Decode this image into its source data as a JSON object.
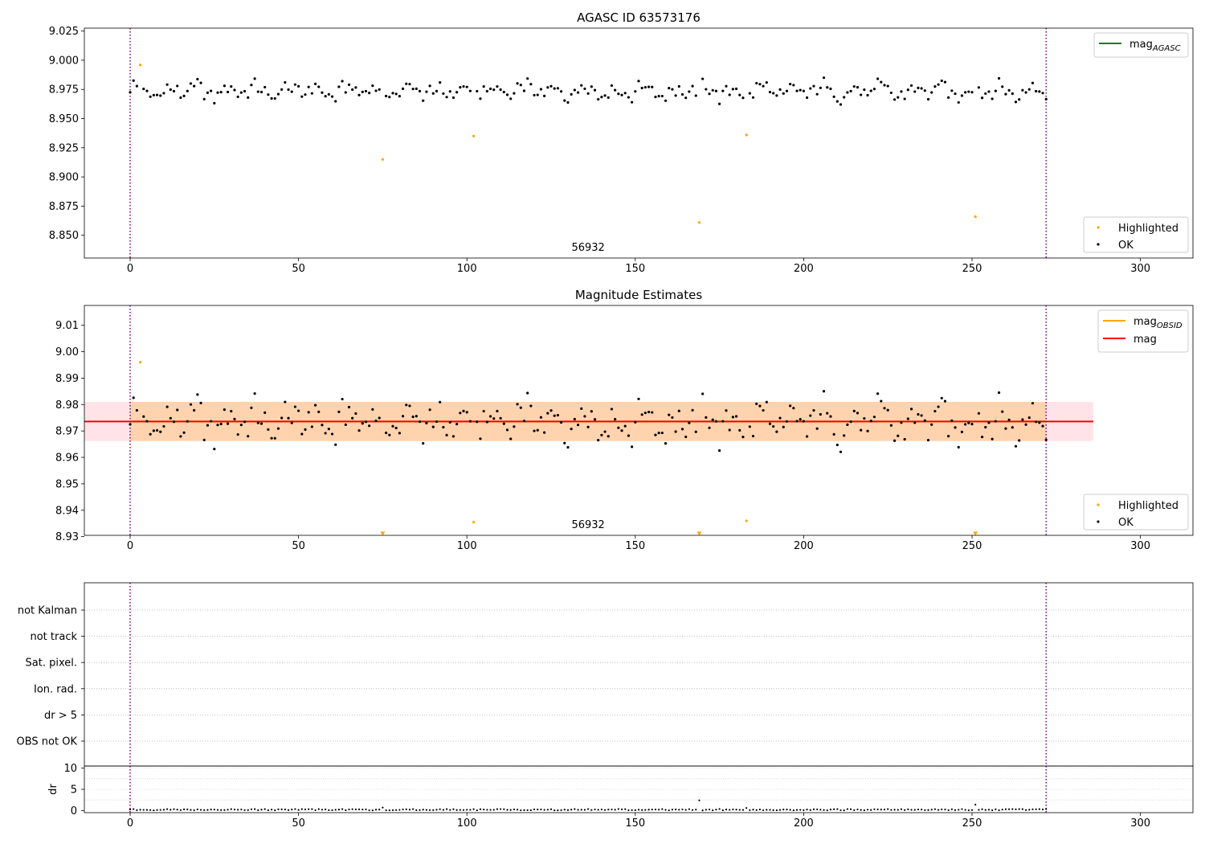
{
  "chart_data": [
    {
      "type": "scatter",
      "title": "AGASC ID 63573176",
      "xlim": [
        -13.6,
        315.6
      ],
      "ylim": [
        8.8305,
        9.0275
      ],
      "xticks": [
        0,
        50,
        100,
        150,
        200,
        250,
        300
      ],
      "yticks": [
        8.85,
        8.875,
        8.9,
        8.925,
        8.95,
        8.975,
        9.0,
        9.025
      ],
      "yticklabels": [
        "8.850",
        "8.875",
        "8.900",
        "8.925",
        "8.950",
        "8.975",
        "9.000",
        "9.025"
      ],
      "vlines": [
        0,
        272
      ],
      "obsid_label": {
        "text": "56932",
        "x": 136
      },
      "legend_upper": [
        {
          "name": "mag",
          "sub": "AGASC",
          "color": "#008000"
        }
      ],
      "legend_lower": [
        {
          "name": "Highlighted",
          "color": "#ffa500"
        },
        {
          "name": "OK",
          "color": "#000000"
        }
      ],
      "series": [
        {
          "name": "Highlighted",
          "color": "#ffa500",
          "points": [
            [
              3,
              8.996
            ],
            [
              75,
              8.915
            ],
            [
              102,
              8.935
            ],
            [
              169,
              8.861
            ],
            [
              183,
              8.936
            ],
            [
              251,
              8.866
            ]
          ]
        },
        {
          "name": "OK",
          "color": "#000000",
          "x_start": 0,
          "x_step": 1,
          "skip": [
            3,
            75,
            102,
            169,
            183,
            251
          ],
          "wave": {
            "base": 8.9735,
            "amp": 0.0075,
            "freqs": [
              0.71,
              1.93,
              0.37
            ],
            "lo": 8.954,
            "hi": 8.992
          }
        }
      ]
    },
    {
      "type": "scatter",
      "title": "Magnitude Estimates",
      "xlim": [
        -13.6,
        315.6
      ],
      "ylim": [
        8.9305,
        9.0175
      ],
      "xticks": [
        0,
        50,
        100,
        150,
        200,
        250,
        300
      ],
      "yticks": [
        8.93,
        8.94,
        8.95,
        8.96,
        8.97,
        8.98,
        8.99,
        9.0,
        9.01
      ],
      "yticklabels": [
        "8.93",
        "8.94",
        "8.95",
        "8.96",
        "8.97",
        "8.98",
        "8.99",
        "9.00",
        "9.01"
      ],
      "vlines": [
        0,
        272
      ],
      "obsid_label": {
        "text": "56932",
        "x": 136
      },
      "mag_line": {
        "value": 8.9736,
        "x_end": 286,
        "band": [
          8.9662,
          8.981
        ],
        "color": "#ff0000",
        "band_color": "#ffc0cb"
      },
      "obsid_band": {
        "x": [
          0,
          272
        ],
        "value": 8.9736,
        "band": [
          8.9662,
          8.981
        ],
        "color": "#ffa500"
      },
      "legend_upper": [
        {
          "name": "mag",
          "sub": "OBSID",
          "color": "#ffa500"
        },
        {
          "name": "mag",
          "sub": "",
          "color": "#ff0000"
        }
      ],
      "legend_lower": [
        {
          "name": "Highlighted",
          "color": "#ffa500"
        },
        {
          "name": "OK",
          "color": "#000000"
        }
      ],
      "series": [
        {
          "name": "Highlighted",
          "color": "#ffa500",
          "points": [
            [
              3,
              8.996
            ],
            [
              102,
              8.9355
            ],
            [
              183,
              8.936
            ]
          ]
        },
        {
          "name": "Highlighted",
          "color": "#ffa500",
          "marker": "triangle-down",
          "points": [
            [
              75,
              8.931
            ],
            [
              169,
              8.931
            ],
            [
              251,
              8.931
            ]
          ]
        },
        {
          "name": "OK",
          "color": "#000000",
          "x_start": 0,
          "x_step": 1,
          "skip": [
            3,
            75,
            102,
            169,
            183,
            251
          ],
          "wave": {
            "base": 8.9735,
            "amp": 0.0075,
            "freqs": [
              0.71,
              1.93,
              0.37
            ],
            "lo": 8.954,
            "hi": 8.992
          }
        }
      ]
    },
    {
      "type": "flags",
      "xlim": [
        -13.6,
        315.6
      ],
      "categories": [
        "not Kalman",
        "not track",
        "Sat. pixel.",
        "Ion. rad.",
        "dr > 5",
        "OBS not OK"
      ],
      "vlines": [
        0,
        272
      ]
    },
    {
      "type": "scatter",
      "ylabel": "dr",
      "xlim": [
        -13.6,
        315.6
      ],
      "ylim": [
        -0.5,
        10.5
      ],
      "xticks": [
        0,
        50,
        100,
        150,
        200,
        250,
        300
      ],
      "yticks": [
        0,
        5,
        10
      ],
      "yticklabels": [
        "0",
        "5",
        "10"
      ],
      "vlines": [
        0,
        272
      ],
      "series": [
        {
          "name": "dr",
          "color": "#000000",
          "x_start": 0,
          "x_step": 1,
          "n": 273,
          "base": 0.2,
          "amp": 0.15,
          "spikes": [
            [
              75,
              0.7
            ],
            [
              169,
              2.4
            ],
            [
              183,
              0.6
            ],
            [
              251,
              1.4
            ]
          ]
        }
      ]
    }
  ]
}
